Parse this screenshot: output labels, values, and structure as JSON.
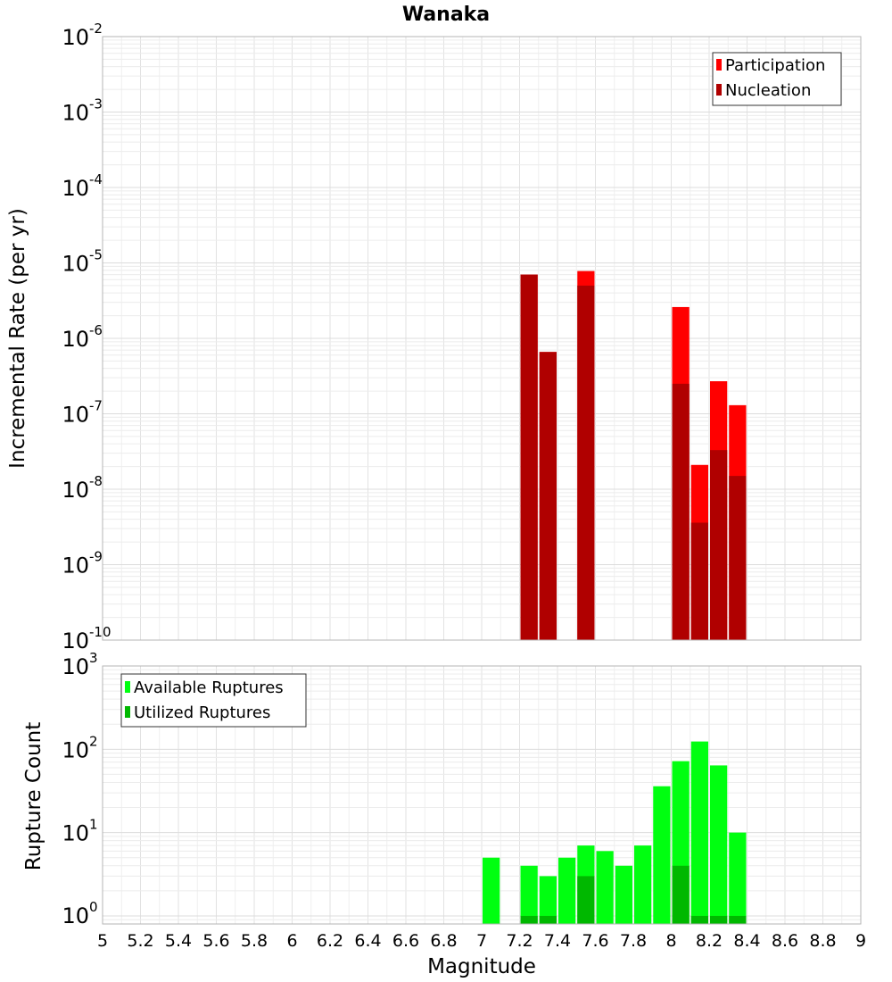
{
  "chart_data": [
    {
      "type": "bar",
      "title": "Wanaka",
      "ylabel": "Incremental Rate (per yr)",
      "xlabel": "",
      "yscale": "log",
      "ylim": [
        1e-10,
        0.01
      ],
      "xlim": [
        5,
        9
      ],
      "grid": true,
      "legend_position": "top-right",
      "y_ticks": [
        {
          "base": "10",
          "exp": "-2"
        },
        {
          "base": "10",
          "exp": "-3"
        },
        {
          "base": "10",
          "exp": "-4"
        },
        {
          "base": "10",
          "exp": "-5"
        },
        {
          "base": "10",
          "exp": "-6"
        },
        {
          "base": "10",
          "exp": "-7"
        },
        {
          "base": "10",
          "exp": "-8"
        },
        {
          "base": "10",
          "exp": "-9"
        },
        {
          "base": "10",
          "exp": "-10"
        }
      ],
      "bin_width": 0.1,
      "series": [
        {
          "name": "Participation",
          "color": "#ff0000",
          "x": [
            7.25,
            7.35,
            7.55,
            8.05,
            8.15,
            8.25,
            8.35
          ],
          "values": [
            7e-06,
            6.6e-07,
            7.8e-06,
            2.6e-06,
            2.1e-08,
            2.7e-07,
            1.3e-07
          ]
        },
        {
          "name": "Nucleation",
          "color": "#b00000",
          "x": [
            7.25,
            7.35,
            7.55,
            8.05,
            8.15,
            8.25,
            8.35
          ],
          "values": [
            7e-06,
            6.6e-07,
            5e-06,
            2.5e-07,
            3.6e-09,
            3.3e-08,
            1.5e-08
          ]
        }
      ]
    },
    {
      "type": "bar",
      "title": "",
      "ylabel": "Rupture Count",
      "xlabel": "Magnitude",
      "yscale": "log",
      "ylim": [
        0.8,
        1000
      ],
      "xlim": [
        5,
        9
      ],
      "grid": true,
      "legend_position": "top-left",
      "x_ticks": [
        "5",
        "5.2",
        "5.4",
        "5.6",
        "5.8",
        "6",
        "6.2",
        "6.4",
        "6.6",
        "6.8",
        "7",
        "7.2",
        "7.4",
        "7.6",
        "7.8",
        "8",
        "8.2",
        "8.4",
        "8.6",
        "8.8",
        "9"
      ],
      "y_ticks": [
        {
          "base": "10",
          "exp": "3"
        },
        {
          "base": "10",
          "exp": "2"
        },
        {
          "base": "10",
          "exp": "1"
        },
        {
          "base": "10",
          "exp": "0"
        }
      ],
      "bin_width": 0.1,
      "series": [
        {
          "name": "Available Ruptures",
          "color": "#00ff10",
          "x": [
            7.05,
            7.25,
            7.35,
            7.45,
            7.55,
            7.65,
            7.75,
            7.85,
            7.95,
            8.05,
            8.15,
            8.25,
            8.35
          ],
          "values": [
            5,
            4,
            3,
            5,
            7,
            6,
            4,
            7,
            36,
            72,
            124,
            64,
            10
          ]
        },
        {
          "name": "Utilized Ruptures",
          "color": "#00b800",
          "x": [
            7.25,
            7.35,
            7.55,
            8.05,
            8.15,
            8.25,
            8.35
          ],
          "values": [
            1,
            1,
            3,
            4,
            1,
            1,
            1
          ]
        }
      ]
    }
  ]
}
